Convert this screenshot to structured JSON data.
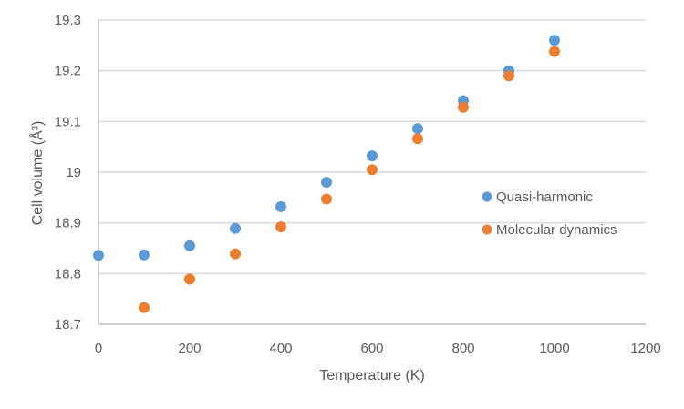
{
  "chart_data": {
    "type": "scatter",
    "title": "",
    "xlabel": "Temperature (K)",
    "ylabel": "Cell volume (Å³)",
    "xlim": [
      0,
      1200
    ],
    "ylim": [
      18.7,
      19.3
    ],
    "x_ticks": [
      0,
      200,
      400,
      600,
      800,
      1000,
      1200
    ],
    "x_tick_labels": [
      "0",
      "200",
      "400",
      "600",
      "800",
      "1000",
      "1200"
    ],
    "y_ticks": [
      18.7,
      18.8,
      18.9,
      19.0,
      19.1,
      19.2,
      19.3
    ],
    "y_tick_labels": [
      "18.7",
      "18.8",
      "18.9",
      "19",
      "19.1",
      "19.2",
      "19.3"
    ],
    "grid": "horizontal",
    "legend_position": "right",
    "series": [
      {
        "name": "Quasi-harmonic",
        "color": "#5B9BD5",
        "x": [
          0,
          100,
          200,
          300,
          400,
          500,
          600,
          700,
          800,
          900,
          1000
        ],
        "y": [
          18.836,
          18.837,
          18.855,
          18.889,
          18.932,
          18.98,
          19.032,
          19.086,
          19.141,
          19.2,
          19.26
        ]
      },
      {
        "name": "Molecular dynamics",
        "color": "#ED7D31",
        "x": [
          100,
          200,
          300,
          400,
          500,
          600,
          700,
          800,
          900,
          1000
        ],
        "y": [
          18.733,
          18.789,
          18.839,
          18.892,
          18.947,
          19.005,
          19.066,
          19.128,
          19.19,
          19.238
        ]
      }
    ]
  }
}
